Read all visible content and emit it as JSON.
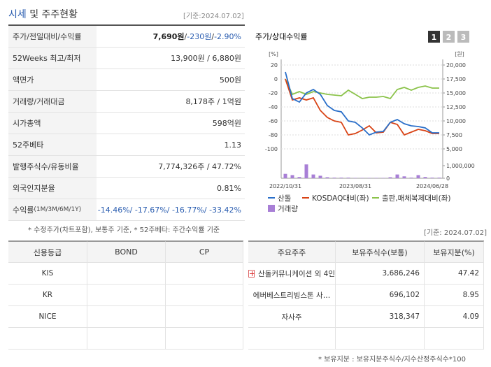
{
  "info": {
    "title_main": "시세",
    "title_rest": " 및 주주현황",
    "basis": "[기준:2024.07.02]",
    "rows": [
      {
        "label": "주가/전일대비/수익률",
        "parts": [
          {
            "text": "7,690원",
            "style": "bold"
          },
          {
            "text": " / "
          },
          {
            "text": "-230원",
            "style": "blue"
          },
          {
            "text": " / "
          },
          {
            "text": "-2.90%",
            "style": "blue"
          }
        ]
      },
      {
        "label": "52Weeks 최고/최저",
        "parts": [
          {
            "text": "13,900원 / 6,880원"
          }
        ]
      },
      {
        "label": "액면가",
        "parts": [
          {
            "text": "500원"
          }
        ]
      },
      {
        "label": "거래량/거래대금",
        "parts": [
          {
            "text": "8,178주 / 1억원"
          }
        ]
      },
      {
        "label": "시가총액",
        "parts": [
          {
            "text": "598억원"
          }
        ]
      },
      {
        "label": "52주베타",
        "parts": [
          {
            "text": "1.13"
          }
        ]
      },
      {
        "label": "발행주식수/유동비율",
        "parts": [
          {
            "text": "7,774,326주 / 47.72%"
          }
        ]
      },
      {
        "label": "외국인지분율",
        "parts": [
          {
            "text": "0.81%"
          }
        ]
      },
      {
        "label": "수익률",
        "label_note": " (1M/3M/6M/1Y)",
        "parts": [
          {
            "text": "-14.46%/ -17.67%/ -16.77%/ -33.42%",
            "style": "blue"
          }
        ]
      }
    ],
    "footnote": "* 수정주가(차트포함), 보통주 기준, * 52주베타: 주간수익률 기준"
  },
  "chart_data": {
    "type": "line",
    "title": "주가/상대수익률",
    "buttons": [
      "1",
      "2",
      "3"
    ],
    "y_unit": "[%]",
    "y2_unit": "[원]",
    "categories": [
      "2022/10/31",
      null,
      null,
      null,
      null,
      null,
      null,
      null,
      null,
      null,
      "2023/08/31",
      null,
      null,
      null,
      null,
      null,
      null,
      null,
      null,
      null,
      null,
      "2024/06/28",
      null
    ],
    "ylim": [
      -100,
      20
    ],
    "yticks": [
      20,
      0,
      -20,
      -40,
      -60,
      -80,
      -100
    ],
    "y2lim": [
      5000,
      20000
    ],
    "y2ticks": [
      {
        "value": 20000,
        "label": "20,000"
      },
      {
        "value": 17500,
        "label": "17,500"
      },
      {
        "value": 15000,
        "label": "15,000"
      },
      {
        "value": 12500,
        "label": "12,500"
      },
      {
        "value": 10000,
        "label": "10,000"
      },
      {
        "value": 7500,
        "label": "7,500"
      },
      {
        "value": 5000,
        "label": "5,000"
      }
    ],
    "volume_lim": [
      0,
      1000000
    ],
    "volume_ticks": [
      {
        "value": 1000000,
        "label": "1,000,000"
      },
      0
    ],
    "grid": true,
    "series": [
      {
        "name": "산돌",
        "color": "#2a6fc9",
        "values": [
          10,
          -28,
          -33,
          -20,
          -15,
          -22,
          -38,
          -45,
          -47,
          -60,
          -62,
          -70,
          -80,
          -76,
          -75,
          -62,
          -58,
          -64,
          -67,
          -68,
          -70,
          -77,
          -77
        ]
      },
      {
        "name": "KOSDAQ대비(좌)",
        "color": "#d84315",
        "values": [
          0,
          -30,
          -27,
          -30,
          -27,
          -45,
          -55,
          -60,
          -62,
          -80,
          -78,
          -73,
          -67,
          -77,
          -76,
          -62,
          -65,
          -80,
          -76,
          -72,
          -74,
          -78,
          -78
        ]
      },
      {
        "name": "출판,매체복제대비(좌)",
        "color": "#8bc34a",
        "values": [
          0,
          -22,
          -18,
          -22,
          -18,
          -20,
          -22,
          -23,
          -24,
          -16,
          -22,
          -28,
          -26,
          -26,
          -25,
          -28,
          -15,
          -12,
          -16,
          -12,
          -10,
          -13,
          -13
        ]
      }
    ],
    "volume": {
      "name": "거래량",
      "color": "#a87fd6",
      "values": [
        350000,
        250000,
        100000,
        1100000,
        300000,
        200000,
        80000,
        50000,
        50000,
        50000,
        30000,
        30000,
        30000,
        30000,
        30000,
        80000,
        300000,
        150000,
        50000,
        250000,
        100000,
        50000,
        50000
      ]
    }
  },
  "credit": {
    "headers": [
      "신용등급",
      "BOND",
      "CP"
    ],
    "rows": [
      [
        "KIS",
        "",
        ""
      ],
      [
        "KR",
        "",
        ""
      ],
      [
        "NICE",
        "",
        ""
      ],
      [
        "",
        "",
        ""
      ]
    ]
  },
  "holders": {
    "basis": "[기준: 2024.07.02]",
    "headers": [
      "주요주주",
      "보유주식수(보통)",
      "보유지분(%)"
    ],
    "rows": [
      [
        "산돌커뮤니케이션 외 4인",
        "3,686,246",
        "47.42"
      ],
      [
        "에버베스트리빙스톤 사…",
        "696,102",
        "8.95"
      ],
      [
        "자사주",
        "318,347",
        "4.09"
      ],
      [
        "",
        "",
        ""
      ]
    ],
    "footnote": "* 보유지분 : 보유지분주식수/지수산정주식수*100"
  }
}
